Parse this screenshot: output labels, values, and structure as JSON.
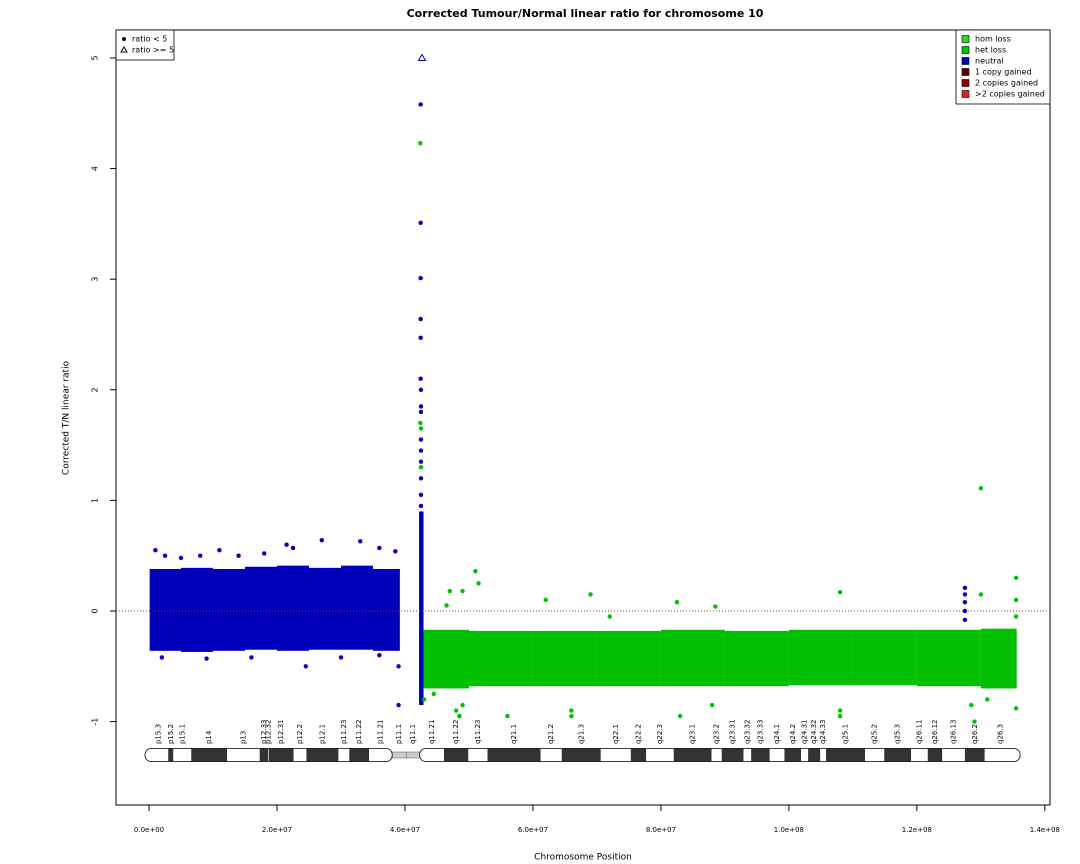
{
  "chart_data": {
    "type": "scatter",
    "title": "Corrected Tumour/Normal linear ratio for chromosome  10",
    "xlabel": "Chromosome Position",
    "ylabel": "Corrected T/N linear ratio",
    "xlim": [
      -5160000,
      140800000
    ],
    "ylim": [
      -1.754,
      5.253
    ],
    "xticks": [
      {
        "value": 0,
        "label": "0.0e+00"
      },
      {
        "value": 20000000,
        "label": "2.0e+07"
      },
      {
        "value": 40000000,
        "label": "4.0e+07"
      },
      {
        "value": 60000000,
        "label": "6.0e+07"
      },
      {
        "value": 80000000,
        "label": "8.0e+07"
      },
      {
        "value": 100000000,
        "label": "1.0e+08"
      },
      {
        "value": 120000000,
        "label": "1.2e+08"
      },
      {
        "value": 140000000,
        "label": "1.4e+08"
      }
    ],
    "yticks": [
      -1,
      0,
      1,
      2,
      3,
      4,
      5
    ],
    "reference_line": {
      "value": 0,
      "color": "#8b3a3a"
    },
    "marker_legend": {
      "corner": "top-left",
      "entries": [
        {
          "label": "ratio < 5",
          "marker": "circle"
        },
        {
          "label": "ratio >= 5",
          "marker": "triangle"
        }
      ]
    },
    "state_legend": {
      "corner": "top-right",
      "entries": [
        {
          "label": "hom loss",
          "color": "#22dd22"
        },
        {
          "label": "het loss",
          "color": "#00c000"
        },
        {
          "label": "neutral",
          "color": "#0000bb"
        },
        {
          "label": "1 copy gained",
          "color": "#5a0000"
        },
        {
          "label": "2 copies gained",
          "color": "#8b0000"
        },
        {
          "label": ">2 copies gained",
          "color": "#dd2222"
        }
      ]
    },
    "clouds": [
      {
        "color": "#0000bb",
        "bins": [
          100000,
          5000000,
          10000000,
          15000000,
          20000000,
          25000000,
          30000000,
          35000000,
          39200000
        ],
        "low": [
          -0.36,
          -0.37,
          -0.36,
          -0.35,
          -0.36,
          -0.35,
          -0.35,
          -0.36
        ],
        "high": [
          0.38,
          0.39,
          0.38,
          0.4,
          0.41,
          0.39,
          0.41,
          0.38
        ]
      },
      {
        "color": "#0000bb",
        "bins": [
          42200000,
          42900000
        ],
        "low": [
          -0.85
        ],
        "high": [
          0.9
        ]
      },
      {
        "color": "#00c000",
        "bins": [
          42900000,
          50000000,
          60000000,
          70000000,
          80000000,
          90000000,
          100000000,
          110000000,
          120000000,
          130000000,
          135600000
        ],
        "low": [
          -0.7,
          -0.68,
          -0.68,
          -0.68,
          -0.68,
          -0.68,
          -0.67,
          -0.67,
          -0.68,
          -0.7
        ],
        "high": [
          -0.17,
          -0.18,
          -0.18,
          -0.18,
          -0.17,
          -0.18,
          -0.17,
          -0.17,
          -0.17,
          -0.16
        ]
      }
    ],
    "points": [
      {
        "color": "#0000bb",
        "marker": "circle",
        "x": [
          42450000,
          42450000,
          42450000,
          42450000,
          42450000,
          42450000,
          42500000,
          42500000,
          42500000,
          42500000,
          42500000,
          42500000,
          42500000,
          42500000,
          42500000,
          127500000,
          127500000,
          127500000,
          127500000,
          127500000,
          1000000,
          2500000,
          5000000,
          8000000,
          11000000,
          14000000,
          18000000,
          21500000,
          22500000,
          27000000,
          33000000,
          36000000,
          38500000,
          2000000,
          9000000,
          16000000,
          24500000,
          30000000,
          36000000,
          39000000,
          39000000
        ],
        "values": [
          4.58,
          3.51,
          3.01,
          2.64,
          2.47,
          2.1,
          2.0,
          1.85,
          1.8,
          1.55,
          1.45,
          1.35,
          1.2,
          1.05,
          0.95,
          0.21,
          0.15,
          0.08,
          0.0,
          -0.08,
          0.55,
          0.5,
          0.48,
          0.5,
          0.55,
          0.5,
          0.52,
          0.6,
          0.57,
          0.64,
          0.63,
          0.57,
          0.54,
          -0.42,
          -0.43,
          -0.42,
          -0.5,
          -0.42,
          -0.4,
          -0.85,
          -0.5
        ]
      },
      {
        "color": "#00c000",
        "marker": "circle",
        "x": [
          42400000,
          42400000,
          42500000,
          42500000,
          130000000,
          135500000,
          108000000,
          130000000,
          47000000,
          49000000,
          51000000,
          51500000,
          62000000,
          69000000,
          82500000,
          88500000,
          72000000,
          46500000,
          135500000,
          135500000,
          43000000,
          44500000,
          48000000,
          48500000,
          49000000,
          56000000,
          66000000,
          66000000,
          83000000,
          88000000,
          108000000,
          108000000,
          128500000,
          131000000,
          135500000,
          129000000
        ],
        "values": [
          4.23,
          1.7,
          1.65,
          1.3,
          1.11,
          0.3,
          0.17,
          0.15,
          0.18,
          0.18,
          0.36,
          0.25,
          0.1,
          0.15,
          0.08,
          0.04,
          -0.05,
          0.05,
          0.1,
          -0.05,
          -0.8,
          -0.75,
          -0.9,
          -0.95,
          -0.85,
          -0.95,
          -0.95,
          -0.9,
          -0.95,
          -0.85,
          -0.9,
          -0.95,
          -0.85,
          -0.8,
          -0.88,
          -1.0
        ]
      },
      {
        "color": "#0000bb",
        "marker": "triangle",
        "x": [
          42660000
        ],
        "values": [
          5
        ]
      }
    ],
    "ideogram": [
      {
        "name": "p15.3",
        "start": 0,
        "end": 3000000,
        "color": "#ffffff"
      },
      {
        "name": "p15.2",
        "start": 3000000,
        "end": 3800000,
        "color": "#333333"
      },
      {
        "name": "p15.1",
        "start": 3800000,
        "end": 6600000,
        "color": "#ffffff"
      },
      {
        "name": "p14",
        "start": 6600000,
        "end": 12200000,
        "color": "#333333"
      },
      {
        "name": "p13",
        "start": 12200000,
        "end": 17300000,
        "color": "#ffffff"
      },
      {
        "name": "p12.33",
        "start": 17300000,
        "end": 18600000,
        "color": "#333333"
      },
      {
        "name": "p12.32",
        "start": 18600000,
        "end": 18700000,
        "color": "#ffffff"
      },
      {
        "name": "p12.31",
        "start": 18700000,
        "end": 22600000,
        "color": "#333333"
      },
      {
        "name": "p12.2",
        "start": 22600000,
        "end": 24600000,
        "color": "#ffffff"
      },
      {
        "name": "p12.1",
        "start": 24600000,
        "end": 29600000,
        "color": "#333333"
      },
      {
        "name": "p11.23",
        "start": 29600000,
        "end": 31300000,
        "color": "#ffffff"
      },
      {
        "name": "p11.22",
        "start": 31300000,
        "end": 34400000,
        "color": "#333333"
      },
      {
        "name": "p11.21",
        "start": 34400000,
        "end": 38000000,
        "color": "#ffffff"
      },
      {
        "name": "p11.1",
        "start": 38000000,
        "end": 40200000,
        "color": "#cccccc"
      },
      {
        "name": "q11.1",
        "start": 40200000,
        "end": 42300000,
        "color": "#cccccc"
      },
      {
        "name": "q11.21",
        "start": 42300000,
        "end": 46100000,
        "color": "#ffffff"
      },
      {
        "name": "q11.22",
        "start": 46100000,
        "end": 49900000,
        "color": "#333333"
      },
      {
        "name": "q11.23",
        "start": 49900000,
        "end": 52900000,
        "color": "#ffffff"
      },
      {
        "name": "q21.1",
        "start": 52900000,
        "end": 61200000,
        "color": "#333333"
      },
      {
        "name": "q21.2",
        "start": 61200000,
        "end": 64500000,
        "color": "#ffffff"
      },
      {
        "name": "q21.3",
        "start": 64500000,
        "end": 70600000,
        "color": "#333333"
      },
      {
        "name": "q22.1",
        "start": 70600000,
        "end": 75300000,
        "color": "#ffffff"
      },
      {
        "name": "q22.2",
        "start": 75300000,
        "end": 77700000,
        "color": "#333333"
      },
      {
        "name": "q22.3",
        "start": 77700000,
        "end": 82000000,
        "color": "#ffffff"
      },
      {
        "name": "q23.1",
        "start": 82000000,
        "end": 87900000,
        "color": "#333333"
      },
      {
        "name": "q23.2",
        "start": 87900000,
        "end": 89500000,
        "color": "#ffffff"
      },
      {
        "name": "q23.31",
        "start": 89500000,
        "end": 92900000,
        "color": "#333333"
      },
      {
        "name": "q23.32",
        "start": 92900000,
        "end": 94100000,
        "color": "#ffffff"
      },
      {
        "name": "q23.33",
        "start": 94100000,
        "end": 97000000,
        "color": "#333333"
      },
      {
        "name": "q24.1",
        "start": 97000000,
        "end": 99300000,
        "color": "#ffffff"
      },
      {
        "name": "q24.2",
        "start": 99300000,
        "end": 101900000,
        "color": "#333333"
      },
      {
        "name": "q24.31",
        "start": 101900000,
        "end": 103000000,
        "color": "#ffffff"
      },
      {
        "name": "q24.32",
        "start": 103000000,
        "end": 104900000,
        "color": "#333333"
      },
      {
        "name": "q24.33",
        "start": 104900000,
        "end": 105800000,
        "color": "#ffffff"
      },
      {
        "name": "q25.1",
        "start": 105800000,
        "end": 111900000,
        "color": "#333333"
      },
      {
        "name": "q25.2",
        "start": 111900000,
        "end": 114900000,
        "color": "#ffffff"
      },
      {
        "name": "q25.3",
        "start": 114900000,
        "end": 119100000,
        "color": "#333333"
      },
      {
        "name": "q26.11",
        "start": 119100000,
        "end": 121700000,
        "color": "#ffffff"
      },
      {
        "name": "q26.12",
        "start": 121700000,
        "end": 123960000,
        "color": "#333333"
      },
      {
        "name": "q26.13",
        "start": 123960000,
        "end": 127500000,
        "color": "#ffffff"
      },
      {
        "name": "q26.2",
        "start": 127500000,
        "end": 130600000,
        "color": "#333333"
      },
      {
        "name": "q26.3",
        "start": 130600000,
        "end": 135500000,
        "color": "#ffffff"
      }
    ]
  }
}
